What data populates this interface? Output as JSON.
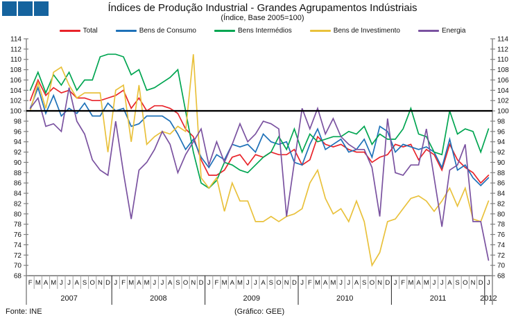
{
  "header": {
    "title": "Índices de Produção Industrial - Grandes Agrupamentos Indústriais",
    "subtitle": "(Índice, Base 2005=100)"
  },
  "footer": {
    "source": "Fonte: INE",
    "credit": "(Gráfico: GEE)"
  },
  "colors": {
    "logo_blue": "#15639e",
    "axis_gray": "#808080",
    "month_tick_gray": "#a0a0a0",
    "baseline_black": "#000000"
  },
  "chart_data": {
    "type": "line",
    "title": "Índices de Produção Industrial - Grandes Agrupamentos Indústriais",
    "subtitle": "(Índice, Base 2005=100)",
    "ylim": [
      68,
      114
    ],
    "ytick_step": 2,
    "baseline_value": 100,
    "grid": "off",
    "legend_position": "top",
    "x_months": [
      "F",
      "M",
      "A",
      "M",
      "J",
      "J",
      "A",
      "S",
      "O",
      "N",
      "D",
      "J",
      "F",
      "M",
      "A",
      "M",
      "J",
      "J",
      "A",
      "S",
      "O",
      "N",
      "D",
      "J",
      "F",
      "M",
      "A",
      "M",
      "J",
      "J",
      "A",
      "S",
      "O",
      "N",
      "D",
      "J",
      "F",
      "M",
      "A",
      "M",
      "J",
      "J",
      "A",
      "S",
      "O",
      "N",
      "D",
      "J",
      "F",
      "M",
      "A",
      "M",
      "J",
      "J",
      "A",
      "S",
      "O",
      "N",
      "D",
      "J"
    ],
    "years": [
      {
        "label": "2007",
        "months": 11
      },
      {
        "label": "2008",
        "months": 12
      },
      {
        "label": "2009",
        "months": 12
      },
      {
        "label": "2010",
        "months": 12
      },
      {
        "label": "2011",
        "months": 12
      },
      {
        "label": "2012",
        "months": 1
      }
    ],
    "series": [
      {
        "name": "Total",
        "color": "#e8232a",
        "values": [
          102,
          106,
          103,
          104.5,
          103.5,
          104,
          102.5,
          102.5,
          102,
          102,
          102.5,
          103,
          104,
          100.5,
          102.5,
          100,
          101,
          101,
          100.5,
          99.5,
          96.5,
          95,
          90.5,
          87.5,
          87.5,
          88.5,
          91,
          91.5,
          89.5,
          91.5,
          91,
          92,
          91.5,
          91.5,
          92.5,
          89.5,
          90.5,
          95,
          93.5,
          93,
          93.5,
          92.5,
          92,
          92,
          90,
          91,
          91.5,
          93.5,
          93,
          93.5,
          90.5,
          92.5,
          91.5,
          88.5,
          93.5,
          90.5,
          89,
          88,
          86,
          87.5
        ]
      },
      {
        "name": "Bens de Consumo",
        "color": "#1e71b8",
        "values": [
          100.5,
          104.5,
          99.5,
          103,
          99,
          100.5,
          99.5,
          101.5,
          99,
          99,
          101.5,
          100,
          100.5,
          97,
          97.5,
          99,
          99,
          99,
          98,
          95.5,
          92.5,
          94.5,
          91,
          89,
          91.5,
          90.5,
          93.5,
          93,
          93.5,
          92,
          95.5,
          94,
          93.5,
          94,
          90,
          89.5,
          93.5,
          96.5,
          92.5,
          93.5,
          94.5,
          92,
          92.5,
          94.5,
          91,
          97,
          96,
          92,
          93.5,
          93,
          92.5,
          93,
          92,
          89,
          94.5,
          88.5,
          89.5,
          87,
          85.5,
          87
        ]
      },
      {
        "name": "Bens Intermédios",
        "color": "#00a551",
        "values": [
          104,
          107.5,
          103.5,
          107,
          105,
          107.5,
          104,
          106,
          106,
          110.5,
          111,
          111,
          110.5,
          107,
          108,
          104,
          104.5,
          105.5,
          106.5,
          108,
          100,
          92,
          86,
          85,
          86.5,
          90,
          89.5,
          88.5,
          88,
          89.5,
          91,
          92,
          95,
          92.5,
          96.5,
          92,
          95.5,
          94,
          94.5,
          95,
          95,
          96,
          95.5,
          97,
          93.5,
          95.5,
          94.5,
          94.5,
          96.5,
          100.5,
          95.5,
          95,
          92,
          91.5,
          100,
          95.5,
          96.5,
          96,
          92,
          96.5
        ]
      },
      {
        "name": "Bens de Investimento",
        "color": "#e9c13b",
        "values": [
          100,
          105.5,
          100.5,
          107.5,
          108.5,
          105,
          102.5,
          103.5,
          103.5,
          103.5,
          92,
          104,
          105,
          94,
          105,
          93.5,
          95,
          96,
          95.5,
          97,
          96,
          111,
          87,
          85,
          87,
          80.5,
          86,
          82.5,
          82.5,
          78.5,
          78.5,
          79.5,
          78.5,
          79.5,
          80,
          81,
          86,
          88.5,
          83,
          80,
          81,
          78.5,
          82.5,
          78.5,
          70,
          72.5,
          78.5,
          79,
          81,
          83,
          83.5,
          82.5,
          80.5,
          82.5,
          85,
          81.5,
          85,
          79,
          78.5,
          82.5
        ]
      },
      {
        "name": "Energia",
        "color": "#7a52a0",
        "values": [
          100.5,
          102.5,
          97,
          97.5,
          96,
          104.5,
          98,
          95.5,
          90.5,
          88.5,
          87.5,
          98,
          88,
          79,
          88.5,
          90,
          92.5,
          96,
          93.5,
          88,
          91.5,
          94,
          96.5,
          89.5,
          94,
          90,
          93.5,
          97.5,
          94,
          95.5,
          98,
          97.5,
          96.5,
          79.5,
          90,
          100.5,
          96.5,
          100.5,
          95.5,
          98.5,
          95,
          93.5,
          92.5,
          92.5,
          89,
          79.5,
          98.5,
          88,
          87.5,
          89.5,
          89.5,
          96.5,
          87,
          77.5,
          88.5,
          89.5,
          93.5,
          78.5,
          78.5,
          71
        ]
      }
    ]
  }
}
